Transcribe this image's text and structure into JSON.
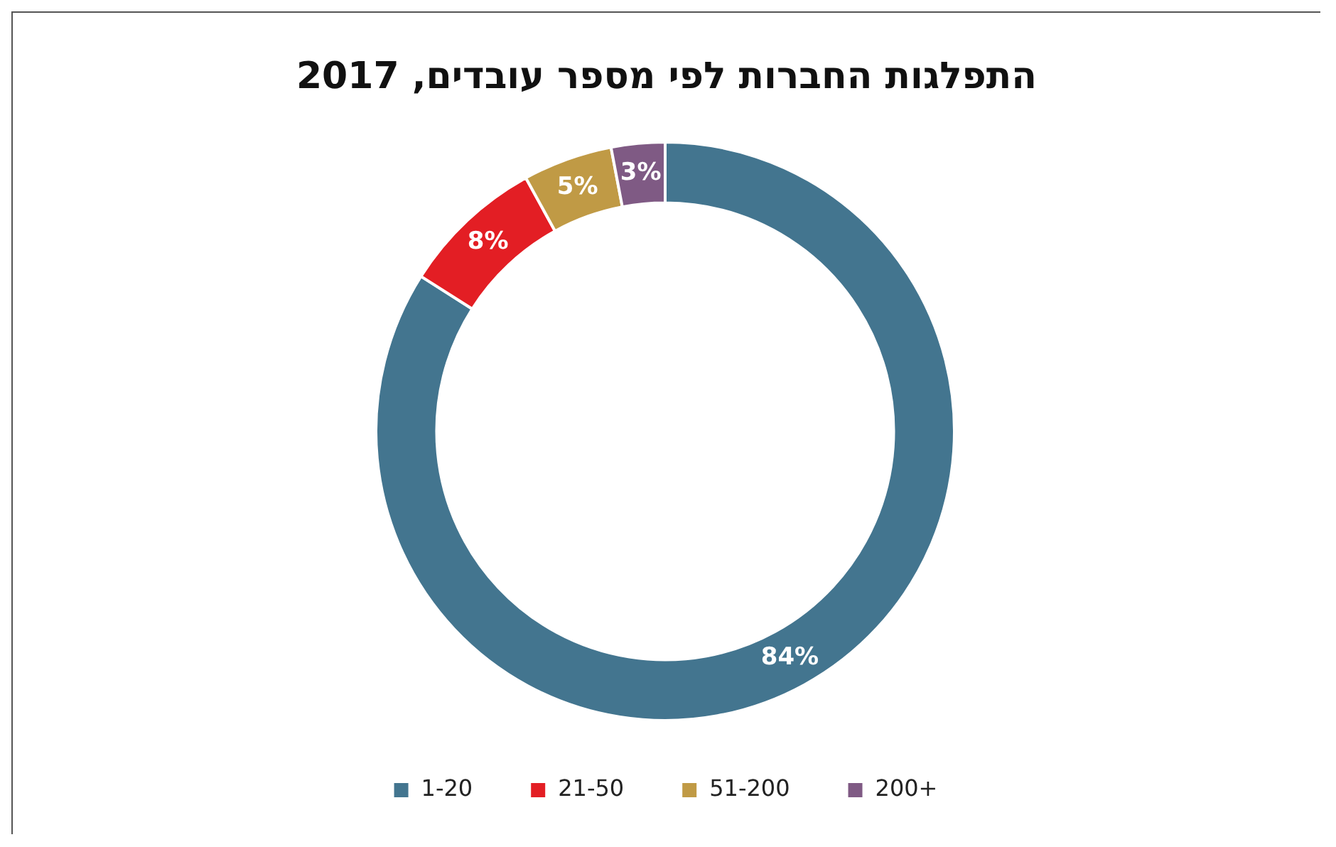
{
  "chart_data": {
    "type": "donut",
    "title": "התפלגות החברות לפי מספר עובדים, 2017",
    "categories": [
      "1-20",
      "21-50",
      "51-200",
      "200+"
    ],
    "values": [
      84,
      8,
      5,
      3
    ],
    "colors": [
      "#43758f",
      "#e31e24",
      "#c09a45",
      "#7f5a84"
    ],
    "value_labels": [
      "84%",
      "8%",
      "5%",
      "3%"
    ],
    "legend": "bottom"
  }
}
